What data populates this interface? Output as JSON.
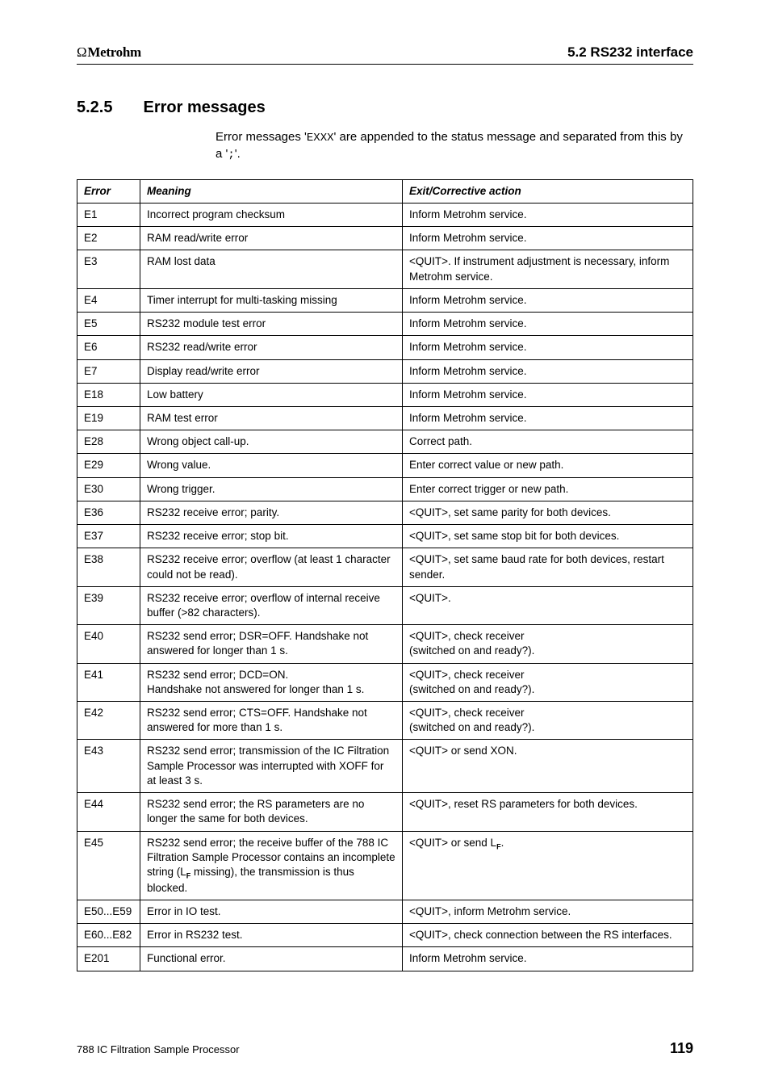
{
  "header": {
    "logo_text": "Metrohm",
    "logo_prefix": "Ω",
    "section_ref": "5.2 RS232 interface"
  },
  "heading": {
    "number": "5.2.5",
    "title": "Error messages"
  },
  "intro": {
    "before_mono1": "Error messages '",
    "mono1": "EXXX",
    "between": "' are appended to the status message and separated from this by a '",
    "mono2": ";",
    "after": "'."
  },
  "table": {
    "headers": [
      "Error",
      "Meaning",
      "Exit/Corrective action"
    ],
    "rows": [
      [
        "E1",
        "Incorrect program checksum",
        "Inform Metrohm service."
      ],
      [
        "E2",
        "RAM read/write error",
        "Inform Metrohm service."
      ],
      [
        "E3",
        "RAM lost data",
        "<QUIT>. If instrument adjustment is necessary, inform Metrohm service."
      ],
      [
        "E4",
        "Timer interrupt for multi-tasking missing",
        "Inform Metrohm service."
      ],
      [
        "E5",
        "RS232 module test error",
        "Inform Metrohm service."
      ],
      [
        "E6",
        "RS232 read/write error",
        "Inform Metrohm service."
      ],
      [
        "E7",
        "Display read/write error",
        "Inform Metrohm service."
      ],
      [
        "E18",
        "Low battery",
        "Inform Metrohm service."
      ],
      [
        "E19",
        "RAM test error",
        "Inform Metrohm service."
      ],
      [
        "E28",
        "Wrong object call-up.",
        "Correct path."
      ],
      [
        "E29",
        "Wrong value.",
        "Enter correct value or new path."
      ],
      [
        "E30",
        "Wrong trigger.",
        "Enter correct trigger or new path."
      ],
      [
        "E36",
        "RS232 receive error; parity.",
        "<QUIT>, set same parity for both devices."
      ],
      [
        "E37",
        "RS232 receive error; stop bit.",
        "<QUIT>, set same stop bit for both devices."
      ],
      [
        "E38",
        "RS232 receive error; overflow (at least 1 character could not be read).",
        "<QUIT>, set same baud rate for both devices, restart sender."
      ],
      [
        "E39",
        "RS232 receive error; overflow of internal receive buffer (>82 characters).",
        "<QUIT>."
      ],
      [
        "E40",
        "RS232 send error; DSR=OFF. Handshake not answered for longer than 1 s.",
        "<QUIT>, check receiver\n(switched on and ready?)."
      ],
      [
        "E41",
        "RS232 send error; DCD=ON.\nHandshake not answered for longer than 1 s.",
        "<QUIT>, check receiver\n(switched on and ready?)."
      ],
      [
        "E42",
        "RS232 send error; CTS=OFF. Handshake not answered for more than 1 s.",
        "<QUIT>, check receiver\n(switched on and ready?)."
      ],
      [
        "E43",
        "RS232 send error; transmission of the IC Filtration Sample Processor was interrupted with XOFF for at least 3 s.",
        "<QUIT> or send XON."
      ],
      [
        "E44",
        "RS232 send error; the RS parameters are no longer the same for both devices.",
        "<QUIT>, reset RS parameters for both devices."
      ],
      [
        "E45",
        "RS232 send error; the receive buffer of the 788 IC Filtration Sample Processor contains an incomplete string (L__SUBF__ missing), the transmission is thus blocked.",
        "<QUIT> or send L__SUBF__."
      ],
      [
        "E50...E59",
        "Error in IO test.",
        "<QUIT>, inform Metrohm service."
      ],
      [
        "E60...E82",
        "Error in RS232 test.",
        "<QUIT>, check connection between the RS interfaces."
      ],
      [
        "E201",
        "Functional error.",
        "Inform Metrohm service."
      ]
    ]
  },
  "footer": {
    "doc_title": "788 IC Filtration Sample Processor",
    "page_number": "119"
  }
}
